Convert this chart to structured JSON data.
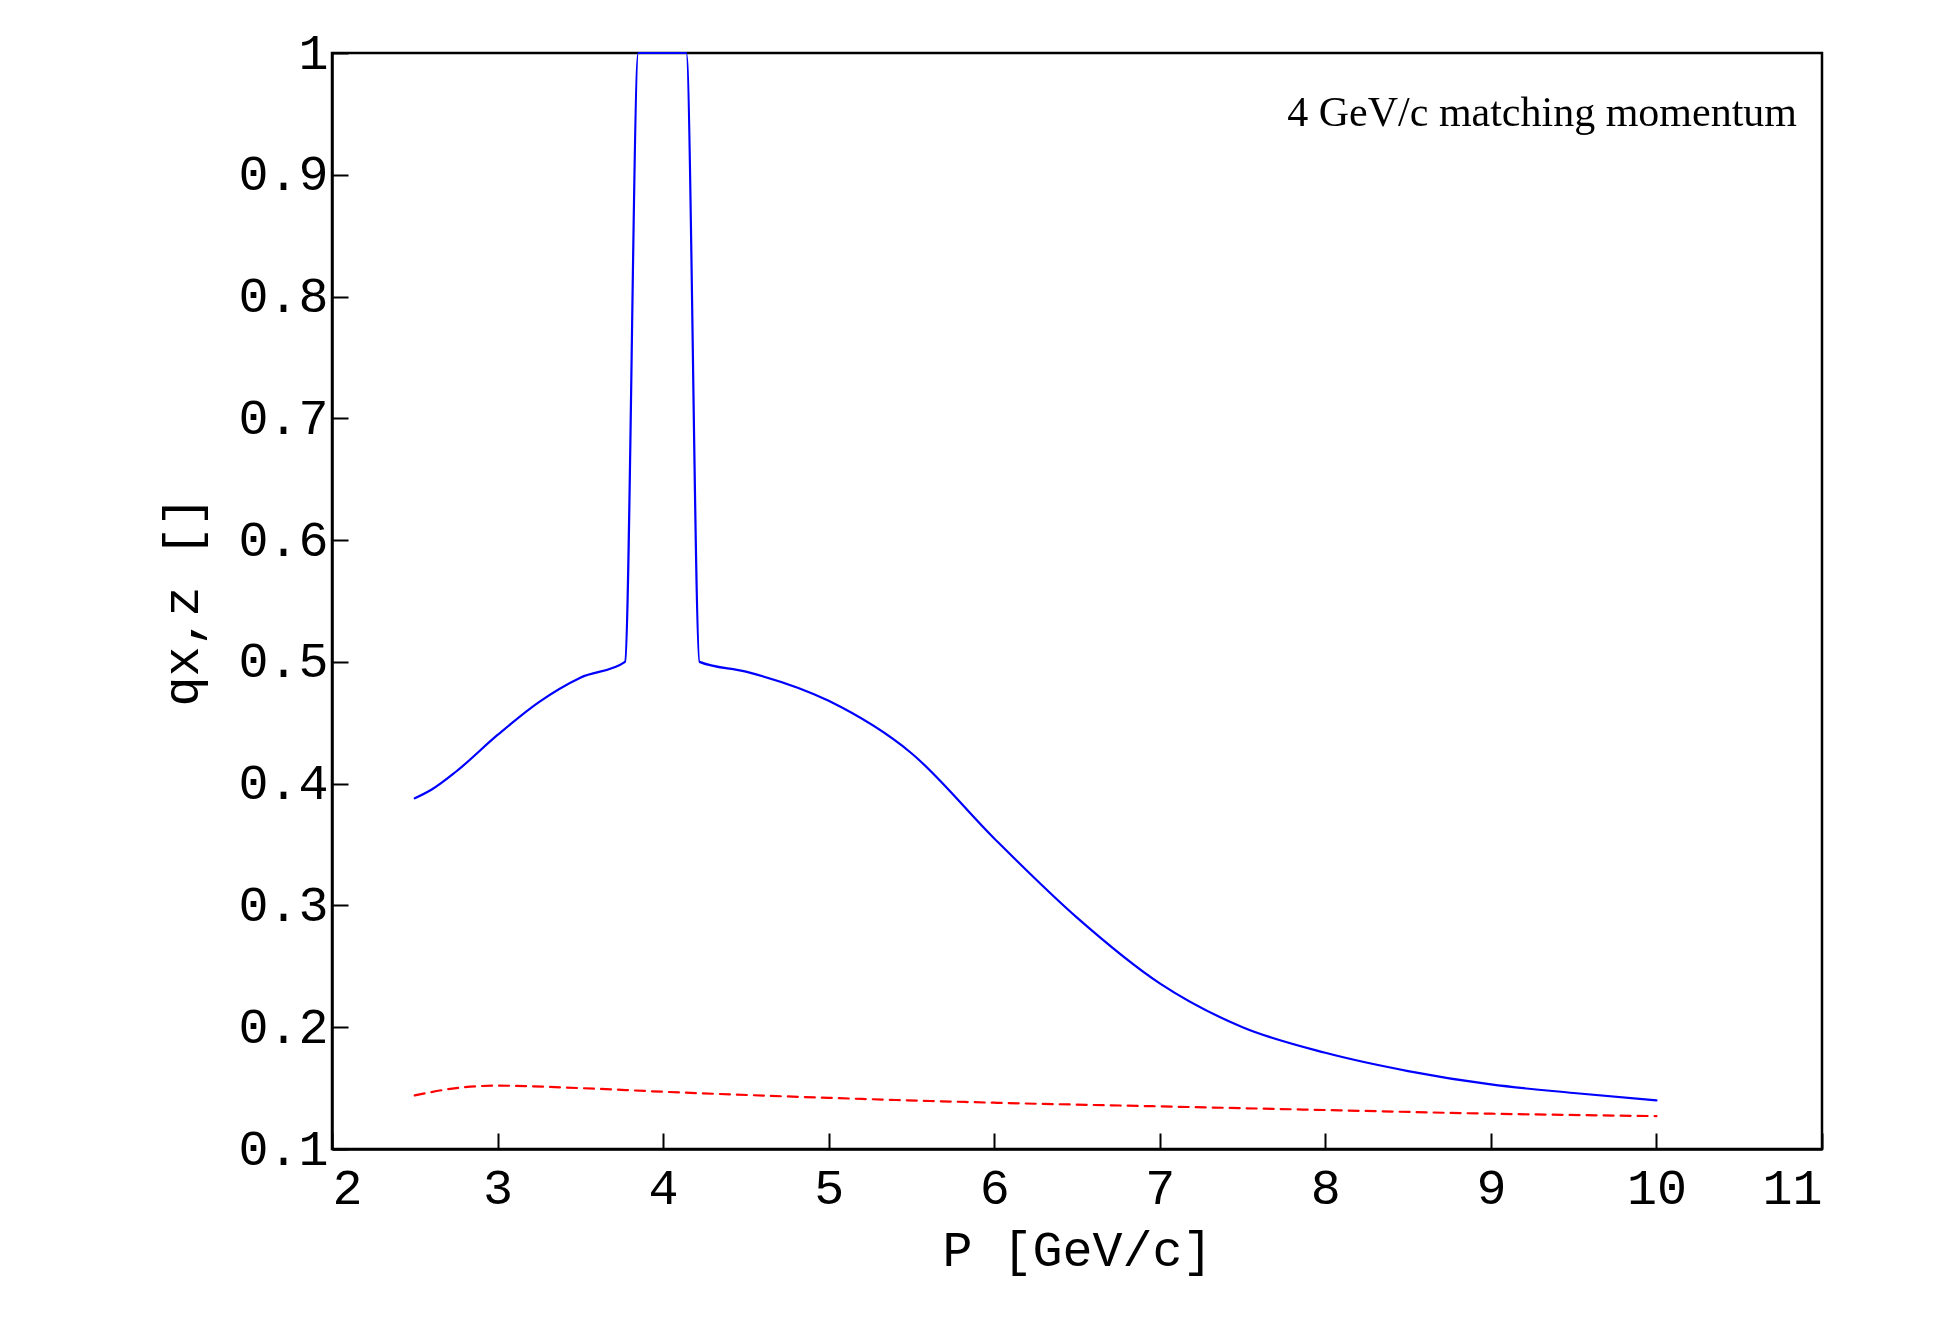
{
  "chart_data": {
    "type": "line",
    "xlabel": "P [GeV/c]",
    "ylabel": "qx,z []",
    "annotations": [
      "4 GeV/c matching momentum"
    ],
    "xlim": [
      2,
      11
    ],
    "xticks": [
      2,
      3,
      4,
      5,
      6,
      7,
      8,
      9,
      10,
      11
    ],
    "ylim": [
      0.1,
      1
    ],
    "yticks": [
      0.1,
      0.2,
      0.3,
      0.4,
      0.5,
      0.6,
      0.7,
      0.8,
      0.9,
      1
    ],
    "series": [
      {
        "color": "#0000ff",
        "line_style": "solid",
        "x": [
          2.5,
          2.6,
          2.75,
          3.0,
          3.25,
          3.5,
          3.77,
          3.85,
          4.14,
          4.22,
          4.5,
          5.0,
          5.5,
          6.0,
          6.5,
          7.0,
          7.5,
          8.0,
          8.5,
          9.0,
          9.5,
          10.0
        ],
        "values": [
          0.388,
          0.395,
          0.41,
          0.44,
          0.467,
          0.487,
          0.5,
          1.0,
          1.0,
          0.5,
          0.492,
          0.468,
          0.425,
          0.355,
          0.29,
          0.236,
          0.2,
          0.179,
          0.164,
          0.153,
          0.146,
          0.14
        ]
      },
      {
        "color": "#ff0000",
        "line_style": "dashed",
        "x": [
          2.5,
          2.75,
          3.0,
          3.5,
          4.0,
          5.0,
          6.0,
          7.0,
          8.0,
          9.0,
          10.0
        ],
        "values": [
          0.144,
          0.15,
          0.152,
          0.15,
          0.147,
          0.142,
          0.138,
          0.135,
          0.132,
          0.129,
          0.127
        ]
      }
    ]
  }
}
